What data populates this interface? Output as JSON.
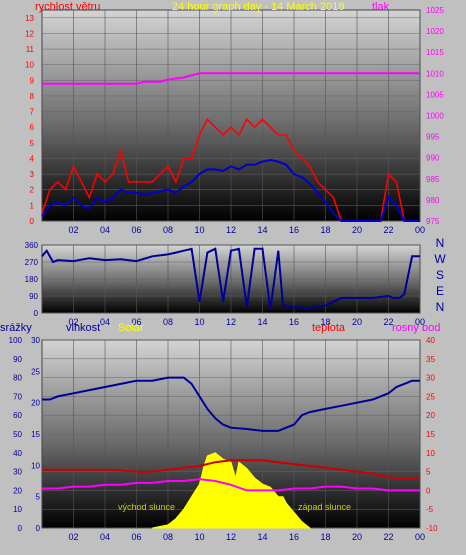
{
  "colors": {
    "frame_bg": "#c0c0c0",
    "plot_top": "#d0d0d0",
    "plot_bottom": "#000000",
    "wind_gust": "#ff0000",
    "wind_avg": "#0000cc",
    "pressure": "#ff00ff",
    "direction": "#000099",
    "humidity": "#000099",
    "solar": "#ffff00",
    "temperature": "#cc0000",
    "dewpoint": "#ff00ff",
    "annotation": "#cccc00"
  },
  "chart_data": [
    {
      "type": "line",
      "title": "24 hour graph day - 14 March 2018",
      "left_label": "rychlost větru",
      "right_label": "tlak",
      "x_ticks": [
        "02",
        "04",
        "06",
        "08",
        "10",
        "12",
        "14",
        "16",
        "18",
        "20",
        "22",
        "00"
      ],
      "y_left_ticks": [
        "0",
        "1",
        "2",
        "3",
        "4",
        "5",
        "6",
        "7",
        "8",
        "9",
        "10",
        "11",
        "12",
        "13"
      ],
      "y_right_ticks": [
        "975",
        "980",
        "985",
        "990",
        "995",
        "1000",
        "1005",
        "1010",
        "1015",
        "1020",
        "1025"
      ],
      "ylim_left": [
        0,
        13.5
      ],
      "ylim_right": [
        975,
        1025
      ],
      "xlim_hours": [
        0,
        24
      ],
      "series": [
        {
          "name": "wind gust (m/s)",
          "x": [
            0.0,
            0.5,
            1.0,
            1.5,
            2.0,
            2.5,
            3.0,
            3.5,
            4.0,
            4.5,
            5.0,
            5.5,
            6.0,
            6.5,
            7.0,
            7.5,
            8.0,
            8.5,
            9.0,
            9.5,
            10.0,
            10.5,
            11.0,
            11.5,
            12.0,
            12.5,
            13.0,
            13.5,
            14.0,
            14.5,
            15.0,
            15.5,
            16.0,
            16.5,
            17.0,
            17.5,
            18.0,
            18.5,
            19.0,
            19.5,
            20.0,
            20.5,
            21.0,
            21.5,
            22.0,
            22.5,
            23.0,
            23.5,
            24.0
          ],
          "y": [
            0.5,
            2.0,
            2.5,
            2.0,
            3.5,
            2.5,
            1.5,
            3.0,
            2.5,
            3.0,
            4.5,
            2.5,
            2.5,
            2.5,
            2.5,
            3.0,
            3.5,
            2.5,
            4.0,
            4.0,
            5.5,
            6.5,
            6.0,
            5.5,
            6.0,
            5.5,
            6.5,
            6.0,
            6.5,
            6.0,
            5.5,
            5.5,
            4.5,
            4.0,
            3.5,
            2.5,
            2.0,
            1.5,
            0.0,
            0.0,
            0.0,
            0.0,
            0.0,
            0.0,
            3.0,
            2.5,
            0.0,
            0.0,
            0.0
          ]
        },
        {
          "name": "wind average (m/s)",
          "x": [
            0.0,
            0.5,
            1.0,
            1.5,
            2.0,
            2.5,
            3.0,
            3.5,
            4.0,
            4.5,
            5.0,
            5.5,
            6.0,
            6.5,
            7.0,
            7.5,
            8.0,
            8.5,
            9.0,
            9.5,
            10.0,
            10.5,
            11.0,
            11.5,
            12.0,
            12.5,
            13.0,
            13.5,
            14.0,
            14.5,
            15.0,
            15.5,
            16.0,
            16.5,
            17.0,
            17.5,
            18.0,
            18.5,
            19.0,
            19.5,
            20.0,
            20.5,
            21.0,
            21.5,
            22.0,
            22.5,
            23.0,
            23.5,
            24.0
          ],
          "y": [
            0.3,
            1.0,
            1.2,
            1.0,
            1.5,
            1.0,
            0.8,
            1.5,
            1.2,
            1.5,
            2.0,
            1.8,
            1.8,
            1.7,
            1.8,
            1.9,
            2.0,
            1.8,
            2.2,
            2.5,
            3.0,
            3.3,
            3.3,
            3.2,
            3.5,
            3.3,
            3.6,
            3.6,
            3.8,
            3.9,
            3.8,
            3.6,
            3.0,
            2.8,
            2.4,
            1.8,
            1.2,
            0.5,
            0.0,
            0.0,
            0.0,
            0.0,
            0.0,
            0.0,
            1.5,
            1.0,
            0.0,
            0.0,
            0.0
          ]
        },
        {
          "name": "pressure (hPa)",
          "axis": "right",
          "x": [
            0.0,
            3.0,
            6.0,
            6.5,
            7.5,
            8.0,
            9.0,
            9.5,
            10.0,
            12.0,
            16.0,
            20.0,
            24.0
          ],
          "y": [
            1007.5,
            1007.5,
            1007.5,
            1008.0,
            1008.0,
            1008.5,
            1009.0,
            1009.5,
            1010.0,
            1010.0,
            1010.0,
            1010.0,
            1010.0
          ]
        }
      ]
    },
    {
      "type": "line",
      "title": "",
      "right_labels": [
        "N",
        "W",
        "S",
        "E",
        "N"
      ],
      "x_ticks": [
        "02",
        "04",
        "06",
        "08",
        "10",
        "12",
        "14",
        "16",
        "18",
        "20",
        "22",
        "00"
      ],
      "y_ticks": [
        "0",
        "90",
        "180",
        "270",
        "360"
      ],
      "ylim": [
        0,
        360
      ],
      "xlim_hours": [
        0,
        24
      ],
      "series": [
        {
          "name": "wind direction (°)",
          "x": [
            0.0,
            0.3,
            0.7,
            1.0,
            2.0,
            3.0,
            4.0,
            5.0,
            6.0,
            7.0,
            8.0,
            8.5,
            9.0,
            9.5,
            10.0,
            10.5,
            11.0,
            11.5,
            12.0,
            12.5,
            13.0,
            13.5,
            14.0,
            14.5,
            15.0,
            15.3,
            15.8,
            16.2,
            17.0,
            18.0,
            18.5,
            19.0,
            20.0,
            21.0,
            22.0,
            22.3,
            22.7,
            23.0,
            23.5,
            24.0
          ],
          "y": [
            300,
            330,
            270,
            280,
            275,
            290,
            280,
            285,
            275,
            300,
            310,
            320,
            330,
            340,
            60,
            320,
            340,
            60,
            330,
            340,
            30,
            340,
            340,
            20,
            330,
            40,
            30,
            30,
            25,
            40,
            60,
            80,
            80,
            80,
            90,
            80,
            80,
            100,
            300,
            300
          ]
        }
      ]
    },
    {
      "type": "line",
      "title": "",
      "left_labels": [
        "srážky",
        "vlhkost",
        "Solar"
      ],
      "right_labels": [
        "teplota",
        "rosný bod"
      ],
      "annotations": [
        "východ slunce",
        "západ slunce"
      ],
      "x_ticks": [
        "02",
        "04",
        "06",
        "08",
        "10",
        "12",
        "14",
        "16",
        "18",
        "20",
        "22",
        "00"
      ],
      "y_rain_ticks": [
        "0",
        "10",
        "20",
        "30",
        "40",
        "50",
        "60",
        "70",
        "80",
        "90",
        "100"
      ],
      "y_humidity_ticks": [
        "0",
        "5",
        "10",
        "15",
        "20",
        "25",
        "30"
      ],
      "y_temp_ticks": [
        "-10",
        "-5",
        "0",
        "5",
        "10",
        "15",
        "20",
        "25",
        "30",
        "35",
        "40"
      ],
      "ylim_humidity": [
        0,
        30
      ],
      "ylim_temp": [
        -10,
        40
      ],
      "xlim_hours": [
        0,
        24
      ],
      "series": [
        {
          "name": "humidity",
          "axis": "humidity",
          "x": [
            0.0,
            0.5,
            1.0,
            2.0,
            3.0,
            4.0,
            5.0,
            6.0,
            7.0,
            8.0,
            9.0,
            9.5,
            10.0,
            10.5,
            11.0,
            11.5,
            12.0,
            13.0,
            14.0,
            15.0,
            15.5,
            16.0,
            16.5,
            17.0,
            18.0,
            19.0,
            20.0,
            21.0,
            22.0,
            22.5,
            23.0,
            23.5,
            24.0
          ],
          "y": [
            20.5,
            20.5,
            21.0,
            21.5,
            22.0,
            22.5,
            23.0,
            23.5,
            23.5,
            24.0,
            24.0,
            23.0,
            21.0,
            19.0,
            17.5,
            16.5,
            16.0,
            15.8,
            15.5,
            15.5,
            16.0,
            16.5,
            18.0,
            18.5,
            19.0,
            19.5,
            20.0,
            20.5,
            21.5,
            22.5,
            23.0,
            23.5,
            23.5
          ]
        },
        {
          "name": "solar",
          "axis": "humidity",
          "x": [
            7.0,
            8.0,
            8.5,
            9.0,
            9.5,
            10.0,
            10.3,
            10.5,
            11.0,
            11.5,
            12.0,
            12.3,
            12.5,
            13.0,
            13.5,
            14.0,
            14.5,
            15.0,
            15.3,
            15.5,
            16.0,
            16.5,
            17.0
          ],
          "y": [
            0.0,
            0.5,
            1.5,
            3.0,
            5.0,
            7.0,
            10.0,
            11.5,
            12.0,
            11.0,
            10.5,
            8.0,
            10.5,
            9.5,
            8.0,
            7.0,
            6.5,
            5.0,
            5.0,
            4.0,
            2.5,
            1.0,
            0.0
          ]
        },
        {
          "name": "temperature",
          "axis": "temp",
          "x": [
            0.0,
            1.0,
            2.0,
            3.0,
            4.0,
            5.0,
            6.0,
            7.0,
            8.0,
            9.0,
            10.0,
            11.0,
            12.0,
            13.0,
            14.0,
            15.0,
            16.0,
            17.0,
            18.0,
            19.0,
            20.0,
            21.0,
            22.0,
            23.0,
            24.0
          ],
          "y": [
            5.5,
            5.5,
            5.5,
            5.5,
            5.5,
            5.3,
            5.0,
            5.0,
            5.5,
            6.0,
            6.5,
            7.5,
            8.0,
            8.0,
            8.0,
            7.5,
            7.0,
            6.5,
            6.0,
            5.5,
            5.0,
            4.5,
            3.5,
            3.0,
            3.5
          ]
        },
        {
          "name": "dew point",
          "axis": "temp",
          "x": [
            0.0,
            1.0,
            2.0,
            3.0,
            4.0,
            5.0,
            6.0,
            7.0,
            8.0,
            9.0,
            10.0,
            11.0,
            12.0,
            13.0,
            14.0,
            15.0,
            16.0,
            17.0,
            18.0,
            19.0,
            20.0,
            21.0,
            22.0,
            23.0,
            24.0
          ],
          "y": [
            0.5,
            0.5,
            1.0,
            1.0,
            1.5,
            1.5,
            2.0,
            2.0,
            2.5,
            2.5,
            3.0,
            2.5,
            1.5,
            0.0,
            0.0,
            0.0,
            0.5,
            0.5,
            1.0,
            1.0,
            0.5,
            0.5,
            0.0,
            0.0,
            0.0
          ]
        }
      ]
    }
  ]
}
